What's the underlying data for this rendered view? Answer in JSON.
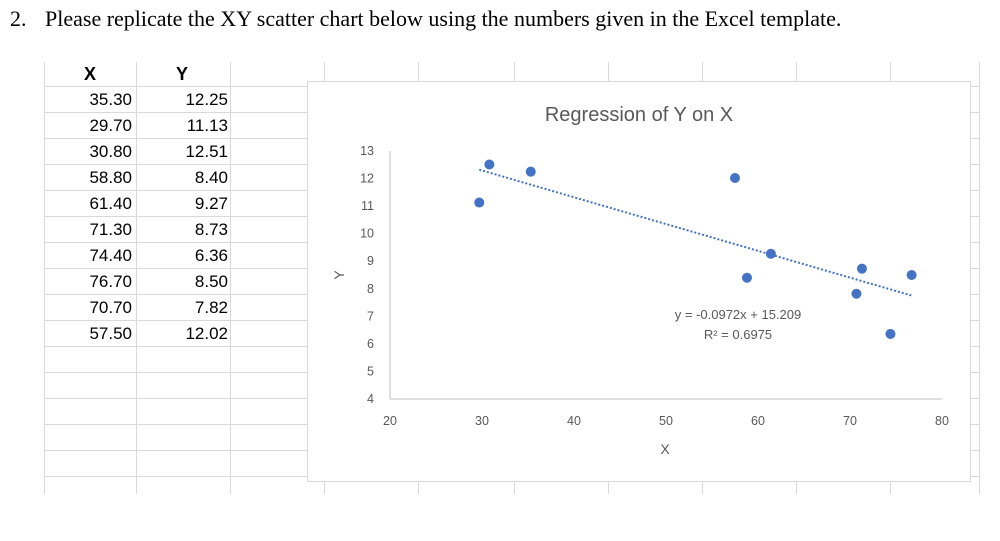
{
  "question": {
    "number": "2.",
    "text": "Please replicate the XY scatter chart below using the numbers given in the Excel template."
  },
  "table": {
    "headers": [
      "X",
      "Y"
    ],
    "rows": [
      [
        "35.30",
        "12.25"
      ],
      [
        "29.70",
        "11.13"
      ],
      [
        "30.80",
        "12.51"
      ],
      [
        "58.80",
        "8.40"
      ],
      [
        "61.40",
        "9.27"
      ],
      [
        "71.30",
        "8.73"
      ],
      [
        "74.40",
        "6.36"
      ],
      [
        "76.70",
        "8.50"
      ],
      [
        "70.70",
        "7.82"
      ],
      [
        "57.50",
        "12.02"
      ]
    ]
  },
  "colors": {
    "marker": "#4472c4",
    "trendline": "#4472c4",
    "axis": "#bfbfbf",
    "text": "#595959"
  },
  "chart_data": {
    "type": "scatter",
    "title": "Regression of Y on X",
    "xlabel": "X",
    "ylabel": "Y",
    "xlim": [
      20,
      80
    ],
    "ylim": [
      4,
      13
    ],
    "xticks": [
      20,
      30,
      40,
      50,
      60,
      70,
      80
    ],
    "yticks": [
      4,
      5,
      6,
      7,
      8,
      9,
      10,
      11,
      12,
      13
    ],
    "grid": false,
    "points": [
      {
        "x": 35.3,
        "y": 12.25
      },
      {
        "x": 29.7,
        "y": 11.13
      },
      {
        "x": 30.8,
        "y": 12.51
      },
      {
        "x": 58.8,
        "y": 8.4
      },
      {
        "x": 61.4,
        "y": 9.27
      },
      {
        "x": 71.3,
        "y": 8.73
      },
      {
        "x": 74.4,
        "y": 6.36
      },
      {
        "x": 76.7,
        "y": 8.5
      },
      {
        "x": 70.7,
        "y": 7.82
      },
      {
        "x": 57.5,
        "y": 12.02
      }
    ],
    "trendline": {
      "type": "linear",
      "slope": -0.0972,
      "intercept": 15.209,
      "x_range": [
        29.7,
        76.7
      ],
      "equation_label": "y = -0.0972x + 15.209",
      "r2_label": "R² = 0.6975"
    }
  }
}
